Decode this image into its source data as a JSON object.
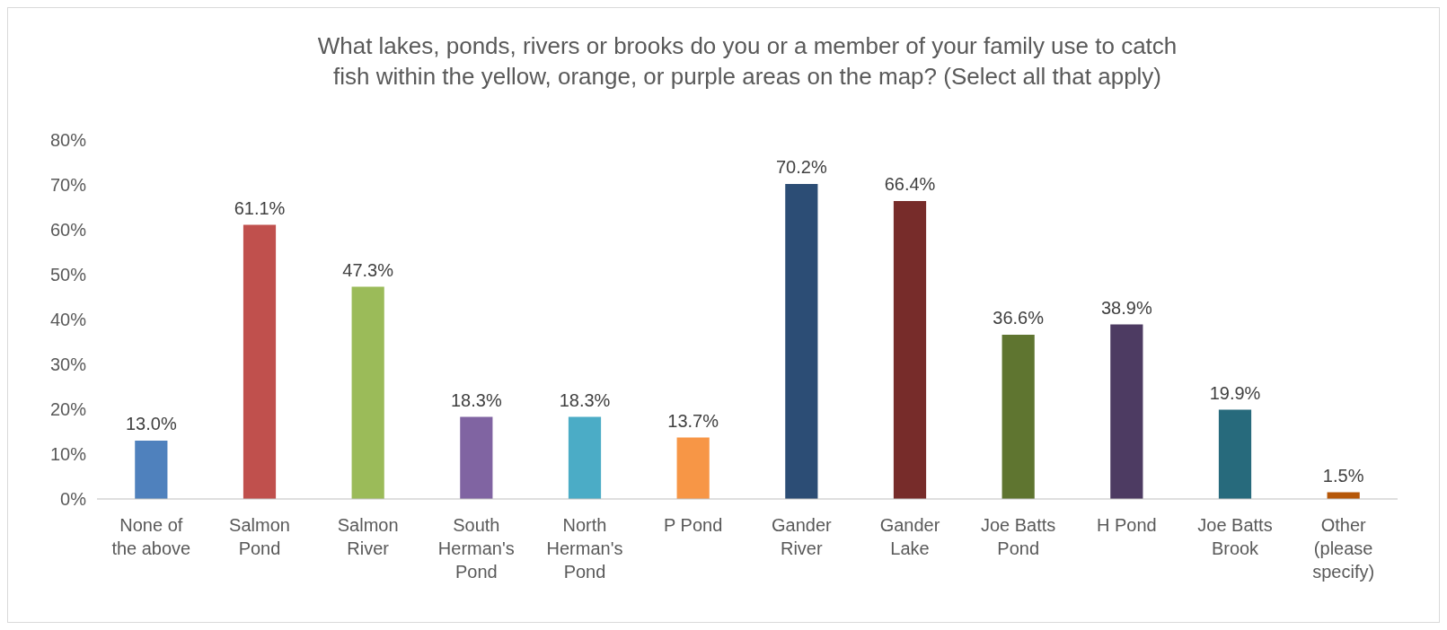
{
  "chart_data": {
    "type": "bar",
    "title": "What lakes, ponds, rivers or brooks do you or a member of your family use to catch fish within the yellow, orange, or purple areas on the map? (Select all that apply)",
    "categories": [
      "None of the above",
      "Salmon Pond",
      "Salmon River",
      "South Herman's Pond",
      "North Herman's Pond",
      "P Pond",
      "Gander River",
      "Gander Lake",
      "Joe Batts Pond",
      "H Pond",
      "Joe Batts Brook",
      "Other (please specify)"
    ],
    "values": [
      13.0,
      61.1,
      47.3,
      18.3,
      18.3,
      13.7,
      70.2,
      66.4,
      36.6,
      38.9,
      19.9,
      1.5
    ],
    "value_labels": [
      "13.0%",
      "61.1%",
      "47.3%",
      "18.3%",
      "18.3%",
      "13.7%",
      "70.2%",
      "66.4%",
      "36.6%",
      "38.9%",
      "19.9%",
      "1.5%"
    ],
    "colors": [
      "#4f81bd",
      "#c0504d",
      "#9bbb59",
      "#8064a2",
      "#4bacc6",
      "#f79646",
      "#2c4d75",
      "#772c2a",
      "#5f7530",
      "#4d3b62",
      "#276a7c",
      "#b65708"
    ],
    "ylim": [
      0,
      80
    ],
    "yticks": [
      {
        "value": 0,
        "label": "0%"
      },
      {
        "value": 10,
        "label": "10%"
      },
      {
        "value": 20,
        "label": "20%"
      },
      {
        "value": 30,
        "label": "30%"
      },
      {
        "value": 40,
        "label": "40%"
      },
      {
        "value": 50,
        "label": "50%"
      },
      {
        "value": 60,
        "label": "60%"
      },
      {
        "value": 70,
        "label": "70%"
      },
      {
        "value": 80,
        "label": "80%"
      }
    ],
    "grid": false
  }
}
